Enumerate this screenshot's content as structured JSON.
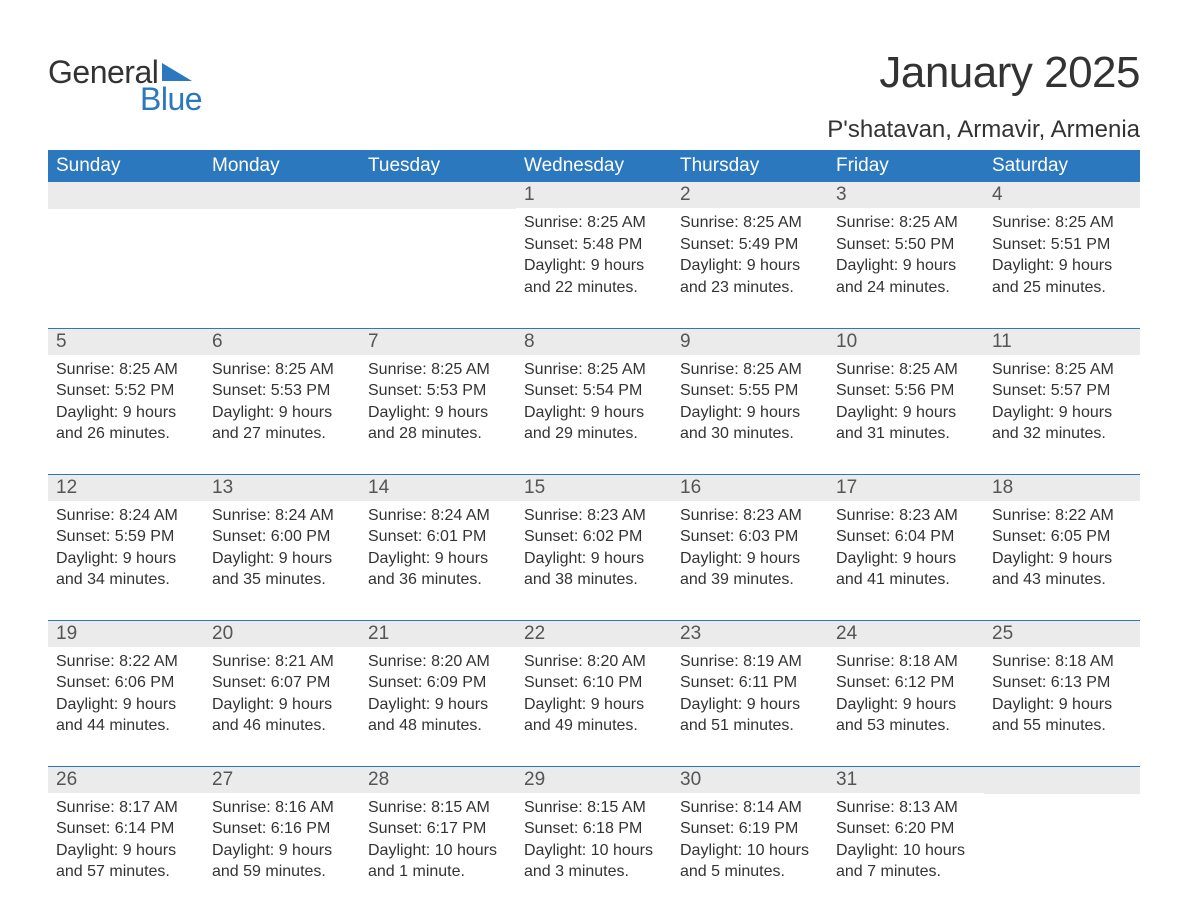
{
  "brand": {
    "word1": "General",
    "word2": "Blue",
    "accent_color": "#2b78be"
  },
  "title": "January 2025",
  "location": "P'shatavan, Armavir, Armenia",
  "colors": {
    "header_bg": "#2b78be",
    "header_text": "#ffffff",
    "daynum_bg": "#ebebeb",
    "row_border": "#2b78be",
    "body_text": "#333333",
    "background": "#ffffff"
  },
  "fonts": {
    "title_size_pt": 33,
    "location_size_pt": 18,
    "header_size_pt": 14,
    "cell_size_pt": 12
  },
  "day_headers": [
    "Sunday",
    "Monday",
    "Tuesday",
    "Wednesday",
    "Thursday",
    "Friday",
    "Saturday"
  ],
  "weeks": [
    [
      null,
      null,
      null,
      {
        "n": "1",
        "sunrise": "Sunrise: 8:25 AM",
        "sunset": "Sunset: 5:48 PM",
        "d1": "Daylight: 9 hours",
        "d2": "and 22 minutes."
      },
      {
        "n": "2",
        "sunrise": "Sunrise: 8:25 AM",
        "sunset": "Sunset: 5:49 PM",
        "d1": "Daylight: 9 hours",
        "d2": "and 23 minutes."
      },
      {
        "n": "3",
        "sunrise": "Sunrise: 8:25 AM",
        "sunset": "Sunset: 5:50 PM",
        "d1": "Daylight: 9 hours",
        "d2": "and 24 minutes."
      },
      {
        "n": "4",
        "sunrise": "Sunrise: 8:25 AM",
        "sunset": "Sunset: 5:51 PM",
        "d1": "Daylight: 9 hours",
        "d2": "and 25 minutes."
      }
    ],
    [
      {
        "n": "5",
        "sunrise": "Sunrise: 8:25 AM",
        "sunset": "Sunset: 5:52 PM",
        "d1": "Daylight: 9 hours",
        "d2": "and 26 minutes."
      },
      {
        "n": "6",
        "sunrise": "Sunrise: 8:25 AM",
        "sunset": "Sunset: 5:53 PM",
        "d1": "Daylight: 9 hours",
        "d2": "and 27 minutes."
      },
      {
        "n": "7",
        "sunrise": "Sunrise: 8:25 AM",
        "sunset": "Sunset: 5:53 PM",
        "d1": "Daylight: 9 hours",
        "d2": "and 28 minutes."
      },
      {
        "n": "8",
        "sunrise": "Sunrise: 8:25 AM",
        "sunset": "Sunset: 5:54 PM",
        "d1": "Daylight: 9 hours",
        "d2": "and 29 minutes."
      },
      {
        "n": "9",
        "sunrise": "Sunrise: 8:25 AM",
        "sunset": "Sunset: 5:55 PM",
        "d1": "Daylight: 9 hours",
        "d2": "and 30 minutes."
      },
      {
        "n": "10",
        "sunrise": "Sunrise: 8:25 AM",
        "sunset": "Sunset: 5:56 PM",
        "d1": "Daylight: 9 hours",
        "d2": "and 31 minutes."
      },
      {
        "n": "11",
        "sunrise": "Sunrise: 8:25 AM",
        "sunset": "Sunset: 5:57 PM",
        "d1": "Daylight: 9 hours",
        "d2": "and 32 minutes."
      }
    ],
    [
      {
        "n": "12",
        "sunrise": "Sunrise: 8:24 AM",
        "sunset": "Sunset: 5:59 PM",
        "d1": "Daylight: 9 hours",
        "d2": "and 34 minutes."
      },
      {
        "n": "13",
        "sunrise": "Sunrise: 8:24 AM",
        "sunset": "Sunset: 6:00 PM",
        "d1": "Daylight: 9 hours",
        "d2": "and 35 minutes."
      },
      {
        "n": "14",
        "sunrise": "Sunrise: 8:24 AM",
        "sunset": "Sunset: 6:01 PM",
        "d1": "Daylight: 9 hours",
        "d2": "and 36 minutes."
      },
      {
        "n": "15",
        "sunrise": "Sunrise: 8:23 AM",
        "sunset": "Sunset: 6:02 PM",
        "d1": "Daylight: 9 hours",
        "d2": "and 38 minutes."
      },
      {
        "n": "16",
        "sunrise": "Sunrise: 8:23 AM",
        "sunset": "Sunset: 6:03 PM",
        "d1": "Daylight: 9 hours",
        "d2": "and 39 minutes."
      },
      {
        "n": "17",
        "sunrise": "Sunrise: 8:23 AM",
        "sunset": "Sunset: 6:04 PM",
        "d1": "Daylight: 9 hours",
        "d2": "and 41 minutes."
      },
      {
        "n": "18",
        "sunrise": "Sunrise: 8:22 AM",
        "sunset": "Sunset: 6:05 PM",
        "d1": "Daylight: 9 hours",
        "d2": "and 43 minutes."
      }
    ],
    [
      {
        "n": "19",
        "sunrise": "Sunrise: 8:22 AM",
        "sunset": "Sunset: 6:06 PM",
        "d1": "Daylight: 9 hours",
        "d2": "and 44 minutes."
      },
      {
        "n": "20",
        "sunrise": "Sunrise: 8:21 AM",
        "sunset": "Sunset: 6:07 PM",
        "d1": "Daylight: 9 hours",
        "d2": "and 46 minutes."
      },
      {
        "n": "21",
        "sunrise": "Sunrise: 8:20 AM",
        "sunset": "Sunset: 6:09 PM",
        "d1": "Daylight: 9 hours",
        "d2": "and 48 minutes."
      },
      {
        "n": "22",
        "sunrise": "Sunrise: 8:20 AM",
        "sunset": "Sunset: 6:10 PM",
        "d1": "Daylight: 9 hours",
        "d2": "and 49 minutes."
      },
      {
        "n": "23",
        "sunrise": "Sunrise: 8:19 AM",
        "sunset": "Sunset: 6:11 PM",
        "d1": "Daylight: 9 hours",
        "d2": "and 51 minutes."
      },
      {
        "n": "24",
        "sunrise": "Sunrise: 8:18 AM",
        "sunset": "Sunset: 6:12 PM",
        "d1": "Daylight: 9 hours",
        "d2": "and 53 minutes."
      },
      {
        "n": "25",
        "sunrise": "Sunrise: 8:18 AM",
        "sunset": "Sunset: 6:13 PM",
        "d1": "Daylight: 9 hours",
        "d2": "and 55 minutes."
      }
    ],
    [
      {
        "n": "26",
        "sunrise": "Sunrise: 8:17 AM",
        "sunset": "Sunset: 6:14 PM",
        "d1": "Daylight: 9 hours",
        "d2": "and 57 minutes."
      },
      {
        "n": "27",
        "sunrise": "Sunrise: 8:16 AM",
        "sunset": "Sunset: 6:16 PM",
        "d1": "Daylight: 9 hours",
        "d2": "and 59 minutes."
      },
      {
        "n": "28",
        "sunrise": "Sunrise: 8:15 AM",
        "sunset": "Sunset: 6:17 PM",
        "d1": "Daylight: 10 hours",
        "d2": "and 1 minute."
      },
      {
        "n": "29",
        "sunrise": "Sunrise: 8:15 AM",
        "sunset": "Sunset: 6:18 PM",
        "d1": "Daylight: 10 hours",
        "d2": "and 3 minutes."
      },
      {
        "n": "30",
        "sunrise": "Sunrise: 8:14 AM",
        "sunset": "Sunset: 6:19 PM",
        "d1": "Daylight: 10 hours",
        "d2": "and 5 minutes."
      },
      {
        "n": "31",
        "sunrise": "Sunrise: 8:13 AM",
        "sunset": "Sunset: 6:20 PM",
        "d1": "Daylight: 10 hours",
        "d2": "and 7 minutes."
      },
      null
    ]
  ]
}
